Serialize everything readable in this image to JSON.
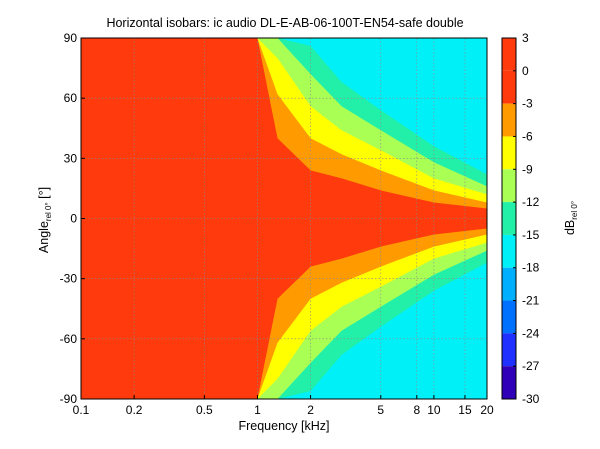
{
  "chart_data": {
    "type": "heatmap",
    "title": "Horizontal isobars: ic audio  DL-E-AB-06-100T-EN54-safe  double",
    "xlabel": "Frequency [kHz]",
    "ylabel_main": "Angle",
    "ylabel_sub": "rel 0°",
    "ylabel_unit": " [°]",
    "xscale": "log",
    "xlim": [
      0.1,
      20
    ],
    "ylim": [
      -90,
      90
    ],
    "x_ticks": [
      0.1,
      0.2,
      0.5,
      1,
      2,
      5,
      8,
      10,
      15,
      20
    ],
    "x_tick_labels": [
      "0.1",
      "0.2",
      "0.5",
      "1",
      "2",
      "5",
      "8",
      "10",
      "15",
      "20"
    ],
    "y_ticks": [
      90,
      60,
      30,
      0,
      -30,
      -60,
      -90
    ],
    "y_tick_labels": [
      "90",
      "60",
      "30",
      "0",
      "-30",
      "-60",
      "-90"
    ],
    "grid": true,
    "colorbar": {
      "label_main": "dB",
      "label_sub": "rel 0°",
      "range": [
        -30,
        3
      ],
      "ticks": [
        3,
        0,
        -3,
        -6,
        -9,
        -12,
        -15,
        -18,
        -21,
        -24,
        -27,
        -30
      ],
      "tick_labels": [
        "3",
        "0",
        "-3",
        "-6",
        "-9",
        "-12",
        "-15",
        "-18",
        "-21",
        "-24",
        "-27",
        "-30"
      ],
      "levels": [
        {
          "range": [
            0,
            3
          ],
          "color": "#ff3a0c"
        },
        {
          "range": [
            -3,
            0
          ],
          "color": "#ff3a0c"
        },
        {
          "range": [
            -6,
            -3
          ],
          "color": "#ff9a00"
        },
        {
          "range": [
            -9,
            -6
          ],
          "color": "#ffff00"
        },
        {
          "range": [
            -12,
            -9
          ],
          "color": "#aaff55"
        },
        {
          "range": [
            -15,
            -12
          ],
          "color": "#22f0a8"
        },
        {
          "range": [
            -18,
            -15
          ],
          "color": "#00f0f8"
        },
        {
          "range": [
            -21,
            -18
          ],
          "color": "#00b0ff"
        },
        {
          "range": [
            -24,
            -21
          ],
          "color": "#0070ff"
        },
        {
          "range": [
            -27,
            -24
          ],
          "color": "#2030ff"
        },
        {
          "range": [
            -30,
            -27
          ],
          "color": "#3000b8"
        }
      ]
    },
    "contour_beamwidth_deg": [
      {
        "freq_khz": 1.0,
        "minus3": 90,
        "minus6": 90,
        "minus9": 90,
        "minus12": 90,
        "minus15": 90
      },
      {
        "freq_khz": 1.3,
        "minus3": 40,
        "minus6": 62,
        "minus9": 80,
        "minus12": 90,
        "minus15": 90
      },
      {
        "freq_khz": 2.0,
        "minus3": 24,
        "minus6": 40,
        "minus9": 56,
        "minus12": 72,
        "minus15": 86
      },
      {
        "freq_khz": 3.0,
        "minus3": 20,
        "minus6": 32,
        "minus9": 44,
        "minus12": 56,
        "minus15": 68
      },
      {
        "freq_khz": 5.0,
        "minus3": 14,
        "minus6": 24,
        "minus9": 34,
        "minus12": 44,
        "minus15": 54
      },
      {
        "freq_khz": 10.0,
        "minus3": 8,
        "minus6": 14,
        "minus9": 20,
        "minus12": 28,
        "minus15": 36
      },
      {
        "freq_khz": 20.0,
        "minus3": 5,
        "minus6": 8,
        "minus9": 12,
        "minus12": 16,
        "minus15": 22
      }
    ]
  }
}
